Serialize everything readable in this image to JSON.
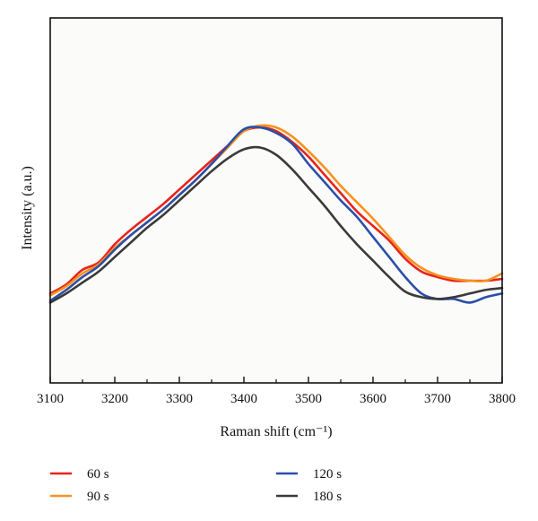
{
  "chart_data": {
    "type": "line",
    "xlabel": "Raman shift (cm⁻¹)",
    "ylabel": "Intensity (a.u.)",
    "xlim": [
      3100,
      3800
    ],
    "ylim": [
      0,
      1
    ],
    "x_ticks": [
      "3100",
      "3200",
      "3300",
      "3400",
      "3500",
      "3600",
      "3700",
      "3800"
    ],
    "grid": false,
    "y_tick_labels": false,
    "legend_position": "bottom",
    "series": [
      {
        "name": "60 s",
        "color": "#e8231a",
        "x": [
          3100,
          3125,
          3150,
          3175,
          3200,
          3225,
          3250,
          3275,
          3300,
          3325,
          3350,
          3375,
          3400,
          3425,
          3450,
          3475,
          3500,
          3525,
          3550,
          3575,
          3600,
          3625,
          3650,
          3675,
          3700,
          3725,
          3750,
          3775,
          3800
        ],
        "y": [
          0.245,
          0.27,
          0.31,
          0.33,
          0.38,
          0.42,
          0.455,
          0.49,
          0.53,
          0.57,
          0.61,
          0.65,
          0.69,
          0.7,
          0.69,
          0.66,
          0.62,
          0.57,
          0.52,
          0.47,
          0.43,
          0.39,
          0.34,
          0.305,
          0.29,
          0.28,
          0.28,
          0.28,
          0.285
        ]
      },
      {
        "name": "90 s",
        "color": "#f5921e",
        "x": [
          3100,
          3125,
          3150,
          3175,
          3200,
          3225,
          3250,
          3275,
          3300,
          3325,
          3350,
          3375,
          3400,
          3425,
          3450,
          3475,
          3500,
          3525,
          3550,
          3575,
          3600,
          3625,
          3650,
          3675,
          3700,
          3725,
          3750,
          3775,
          3800
        ],
        "y": [
          0.24,
          0.265,
          0.3,
          0.325,
          0.37,
          0.405,
          0.44,
          0.475,
          0.515,
          0.555,
          0.6,
          0.645,
          0.69,
          0.705,
          0.7,
          0.675,
          0.635,
          0.59,
          0.54,
          0.495,
          0.45,
          0.4,
          0.35,
          0.315,
          0.295,
          0.285,
          0.28,
          0.28,
          0.3
        ]
      },
      {
        "name": "120 s",
        "color": "#2b4fa8",
        "x": [
          3100,
          3125,
          3150,
          3175,
          3200,
          3225,
          3250,
          3275,
          3300,
          3325,
          3350,
          3375,
          3400,
          3425,
          3450,
          3475,
          3500,
          3525,
          3550,
          3575,
          3600,
          3625,
          3650,
          3675,
          3700,
          3725,
          3750,
          3775,
          3800
        ],
        "y": [
          0.225,
          0.255,
          0.29,
          0.32,
          0.365,
          0.405,
          0.44,
          0.475,
          0.515,
          0.555,
          0.6,
          0.65,
          0.695,
          0.7,
          0.685,
          0.655,
          0.6,
          0.55,
          0.5,
          0.455,
          0.4,
          0.345,
          0.29,
          0.245,
          0.23,
          0.23,
          0.22,
          0.235,
          0.245
        ]
      },
      {
        "name": "180 s",
        "color": "#3a3a3a",
        "x": [
          3100,
          3125,
          3150,
          3175,
          3200,
          3225,
          3250,
          3275,
          3300,
          3325,
          3350,
          3375,
          3400,
          3425,
          3450,
          3475,
          3500,
          3525,
          3550,
          3575,
          3600,
          3625,
          3650,
          3675,
          3700,
          3725,
          3750,
          3775,
          3800
        ],
        "y": [
          0.22,
          0.245,
          0.275,
          0.305,
          0.345,
          0.385,
          0.425,
          0.46,
          0.5,
          0.54,
          0.58,
          0.615,
          0.64,
          0.645,
          0.625,
          0.585,
          0.535,
          0.485,
          0.43,
          0.38,
          0.335,
          0.29,
          0.25,
          0.235,
          0.23,
          0.235,
          0.245,
          0.255,
          0.26
        ]
      }
    ]
  }
}
